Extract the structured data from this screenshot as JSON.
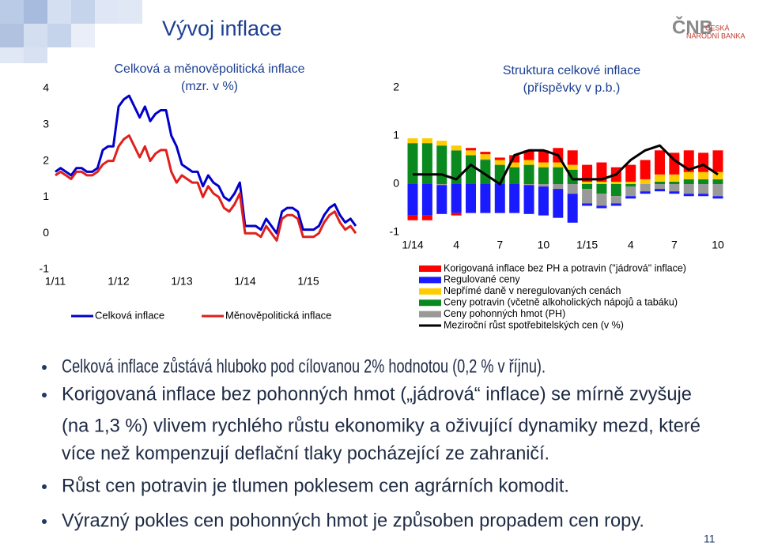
{
  "title": "Vývoj inflace",
  "logo": {
    "mark": "ČNB",
    "line1": "ČESKÁ",
    "line2": "NÁRODNÍ BANKA"
  },
  "chart_data": [
    {
      "type": "line",
      "title": "Celková a měnověpolitická inflace",
      "subtitle": "(mzr. v %)",
      "categories": [
        "1/11",
        null,
        null,
        null,
        null,
        null,
        null,
        null,
        null,
        null,
        null,
        null,
        "1/12",
        null,
        null,
        null,
        null,
        null,
        null,
        null,
        null,
        null,
        null,
        null,
        "1/13",
        null,
        null,
        null,
        null,
        null,
        null,
        null,
        null,
        null,
        null,
        null,
        "1/14",
        null,
        null,
        null,
        null,
        null,
        null,
        null,
        null,
        null,
        null,
        null,
        "1/15",
        null,
        null,
        null,
        null,
        null,
        null,
        null,
        null,
        null
      ],
      "series": [
        {
          "name": "Celková inflace",
          "color": "#0000cc",
          "values": [
            1.7,
            1.8,
            1.7,
            1.6,
            1.8,
            1.8,
            1.7,
            1.7,
            1.8,
            2.3,
            2.4,
            2.4,
            3.5,
            3.7,
            3.8,
            3.5,
            3.2,
            3.5,
            3.1,
            3.3,
            3.4,
            3.4,
            2.7,
            2.4,
            1.9,
            1.8,
            1.7,
            1.7,
            1.3,
            1.6,
            1.4,
            1.3,
            1.0,
            0.9,
            1.1,
            1.4,
            0.2,
            0.2,
            0.2,
            0.1,
            0.4,
            0.2,
            0.0,
            0.6,
            0.7,
            0.7,
            0.6,
            0.1,
            0.1,
            0.1,
            0.2,
            0.5,
            0.7,
            0.8,
            0.5,
            0.3,
            0.4,
            0.2
          ]
        },
        {
          "name": "Měnověpolitická inflace",
          "color": "#e0201c",
          "values": [
            1.6,
            1.7,
            1.6,
            1.5,
            1.7,
            1.7,
            1.6,
            1.6,
            1.7,
            1.9,
            2.0,
            2.0,
            2.4,
            2.6,
            2.7,
            2.4,
            2.1,
            2.4,
            2.0,
            2.2,
            2.3,
            2.3,
            1.7,
            1.4,
            1.6,
            1.5,
            1.4,
            1.4,
            1.0,
            1.3,
            1.1,
            1.0,
            0.7,
            0.6,
            0.8,
            1.1,
            0.0,
            0.0,
            0.0,
            -0.1,
            0.2,
            0.0,
            -0.2,
            0.4,
            0.5,
            0.5,
            0.4,
            -0.1,
            -0.1,
            -0.1,
            0.0,
            0.3,
            0.5,
            0.6,
            0.3,
            0.1,
            0.2,
            0.0
          ]
        }
      ],
      "ylim": [
        -1,
        4
      ],
      "yticks": [
        -1,
        0,
        1,
        2,
        3,
        4
      ],
      "grid": false,
      "legend": "bottom"
    },
    {
      "type": "bar",
      "stacked": true,
      "title": "Struktura celkové inflace",
      "subtitle": "(příspěvky v p.b.)",
      "categories": [
        "1/14",
        null,
        null,
        "4",
        null,
        null,
        "7",
        null,
        null,
        "10",
        null,
        null,
        "1/15",
        null,
        null,
        "4",
        null,
        null,
        "7",
        null,
        null,
        "10"
      ],
      "series": [
        {
          "name": "Korigovaná inflace bez PH a potravin (\"jádrová\" inflace)",
          "color": "#ff0000",
          "values": [
            -0.1,
            -0.1,
            0.0,
            -0.05,
            0.05,
            0.05,
            0.05,
            0.15,
            0.2,
            0.25,
            0.3,
            0.3,
            0.35,
            0.4,
            0.3,
            0.35,
            0.4,
            0.5,
            0.45,
            0.45,
            0.4,
            0.45
          ]
        },
        {
          "name": "Regulované ceny",
          "color": "#1a1aff",
          "values": [
            -0.65,
            -0.65,
            -0.6,
            -0.6,
            -0.6,
            -0.6,
            -0.6,
            -0.6,
            -0.6,
            -0.6,
            -0.6,
            -0.6,
            -0.05,
            -0.05,
            -0.05,
            -0.05,
            -0.05,
            -0.05,
            -0.05,
            -0.05,
            -0.05,
            -0.05
          ]
        },
        {
          "name": "Nepřímé daně v neregulovaných cenách",
          "color": "#ffcc00",
          "values": [
            0.1,
            0.1,
            0.1,
            0.1,
            0.1,
            0.1,
            0.1,
            0.1,
            0.1,
            0.1,
            0.1,
            0.1,
            0.05,
            0.05,
            0.05,
            0.05,
            0.1,
            0.15,
            0.15,
            0.15,
            0.15,
            0.15
          ]
        },
        {
          "name": "Ceny potravin (včetně alkoholických nápojů a tabáku)",
          "color": "#0a8a1e",
          "values": [
            0.85,
            0.85,
            0.8,
            0.7,
            0.6,
            0.5,
            0.4,
            0.35,
            0.4,
            0.35,
            0.35,
            0.3,
            -0.1,
            -0.2,
            -0.25,
            -0.05,
            0.0,
            0.05,
            0.05,
            0.1,
            0.1,
            0.1
          ]
        },
        {
          "name": "Ceny pohonných hmot (PH)",
          "color": "#999999",
          "values": [
            0.0,
            0.0,
            -0.02,
            0.0,
            0.0,
            0.02,
            0.0,
            0.0,
            -0.02,
            -0.05,
            -0.1,
            -0.2,
            -0.3,
            -0.25,
            -0.15,
            -0.2,
            -0.15,
            -0.1,
            -0.15,
            -0.2,
            -0.2,
            -0.25
          ]
        },
        {
          "name": "Meziroční růst spotřebitelských cen (v %)",
          "color": "#000000",
          "type": "line",
          "values": [
            0.2,
            0.2,
            0.2,
            0.1,
            0.4,
            0.2,
            0.0,
            0.6,
            0.7,
            0.7,
            0.6,
            0.1,
            0.1,
            0.1,
            0.2,
            0.5,
            0.7,
            0.8,
            0.5,
            0.3,
            0.4,
            0.2
          ]
        }
      ],
      "ylim": [
        -1,
        2
      ],
      "yticks": [
        -1,
        0,
        1,
        2
      ],
      "grid": false,
      "legend": "bottom"
    }
  ],
  "bullets": [
    [
      "Celková inflace zůstává hluboko pod cílovanou 2% hodnotou (0,2 % v říjnu)."
    ],
    [
      "Korigovaná inflace bez pohonných hmot („jádrová“ inflace) se mírně zvyšuje",
      "(na 1,3 %) vlivem rychlého růstu ekonomiky a oživující dynamiky mezd, které",
      "více než kompenzují deflační tlaky pocházející ze zahraničí."
    ],
    [
      "Růst cen potravin je tlumen poklesem cen agrárních komodit."
    ],
    [
      "Výrazný pokles cen pohonných hmot je způsoben propadem cen ropy."
    ]
  ],
  "page_number": "11"
}
